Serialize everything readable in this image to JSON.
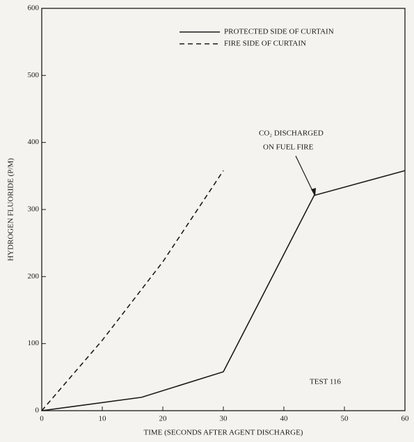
{
  "chart_data": {
    "type": "line",
    "xlabel": "TIME (SECONDS AFTER AGENT DISCHARGE)",
    "ylabel": "HYDROGEN FLUORIDE (P/M)",
    "series": [
      {
        "name": "PROTECTED SIDE OF CURTAIN",
        "color": "#1a1a1a",
        "style": "solid",
        "x": [
          0,
          5,
          16.5,
          30,
          45,
          60
        ],
        "values": [
          0,
          6,
          20,
          58,
          321,
          358
        ]
      },
      {
        "name": "FIRE SIDE OF CURTAIN",
        "color": "#1a1a1a",
        "style": "dashed",
        "x": [
          0,
          10,
          20,
          30
        ],
        "values": [
          0,
          105,
          222,
          358
        ]
      }
    ],
    "annotations": [
      "CO₂ DISCHARGED",
      "ON FUEL FIRE",
      "TEST 116"
    ],
    "xlim": [
      0,
      60
    ],
    "xticks": [
      0,
      10,
      20,
      30,
      40,
      50,
      60
    ],
    "ylim": [
      0,
      600
    ],
    "yticks": [
      0,
      100,
      200,
      300,
      400,
      500,
      600
    ],
    "grid": false,
    "legend": "upper right"
  }
}
